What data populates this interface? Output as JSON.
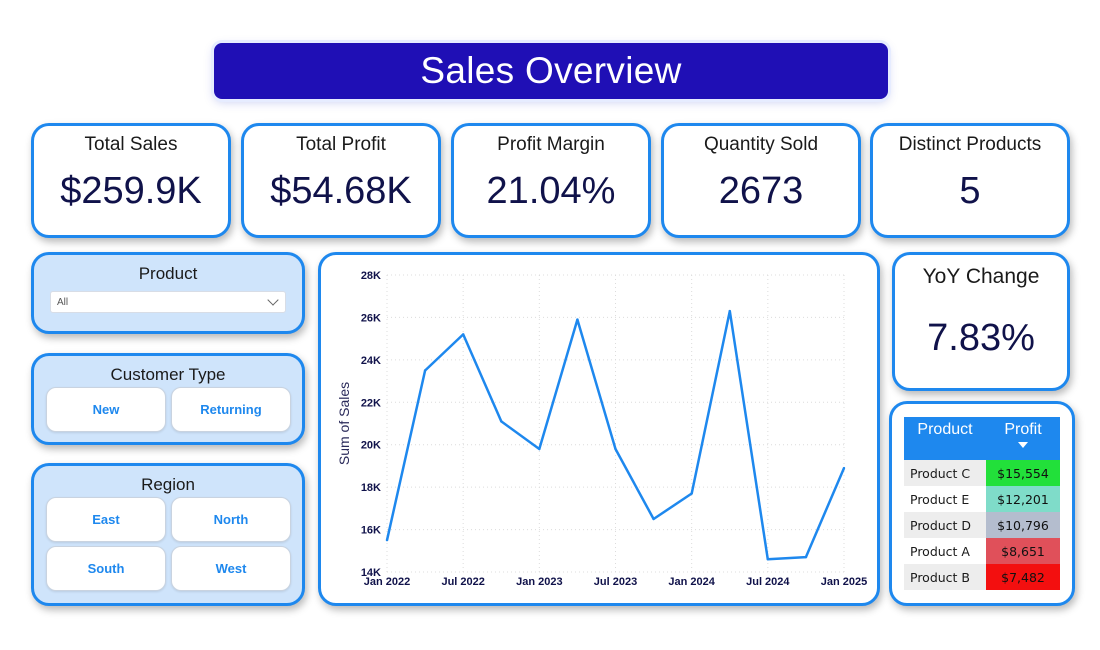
{
  "title": "Sales Overview",
  "kpis": [
    {
      "label": "Total Sales",
      "value": "$259.9K"
    },
    {
      "label": "Total Profit",
      "value": "$54.68K"
    },
    {
      "label": "Profit Margin",
      "value": "21.04%"
    },
    {
      "label": "Quantity Sold",
      "value": "2673"
    },
    {
      "label": "Distinct Products",
      "value": "5"
    }
  ],
  "yoy": {
    "label": "YoY Change",
    "value": "7.83%"
  },
  "product_slicer": {
    "title": "Product",
    "selected": "All"
  },
  "customer_type": {
    "title": "Customer Type",
    "options": [
      "New",
      "Returning"
    ]
  },
  "region": {
    "title": "Region",
    "options": [
      "East",
      "North",
      "South",
      "West"
    ]
  },
  "chart_data": {
    "type": "line",
    "title": "",
    "xlabel": "",
    "ylabel": "Sum of Sales",
    "x": [
      "2022-01",
      "2022-04",
      "2022-07",
      "2022-10",
      "2023-01",
      "2023-04",
      "2023-07",
      "2023-10",
      "2024-01",
      "2024-04",
      "2024-07",
      "2024-10",
      "2025-01"
    ],
    "values": [
      15500,
      23500,
      25200,
      21100,
      19800,
      25900,
      19800,
      16500,
      17700,
      26300,
      14600,
      14700,
      18900
    ],
    "x_ticks": [
      "Jan 2022",
      "Jul 2022",
      "Jan 2023",
      "Jul 2023",
      "Jan 2024",
      "Jul 2024",
      "Jan 2025"
    ],
    "y_ticks": [
      "14K",
      "16K",
      "18K",
      "20K",
      "22K",
      "24K",
      "26K",
      "28K"
    ],
    "ylim": [
      14000,
      28000
    ],
    "grid": true,
    "line_color": "#1e88ee"
  },
  "profit_table": {
    "headers": [
      "Product",
      "Profit"
    ],
    "rows": [
      {
        "product": "Product C",
        "profit": "$15,554",
        "color": "#22e03a"
      },
      {
        "product": "Product E",
        "profit": "$12,201",
        "color": "#7fdcc9"
      },
      {
        "product": "Product D",
        "profit": "$10,796",
        "color": "#b4bdce"
      },
      {
        "product": "Product A",
        "profit": "$8,651",
        "color": "#e0505a"
      },
      {
        "product": "Product B",
        "profit": "$7,482",
        "color": "#f30f0f"
      }
    ]
  }
}
